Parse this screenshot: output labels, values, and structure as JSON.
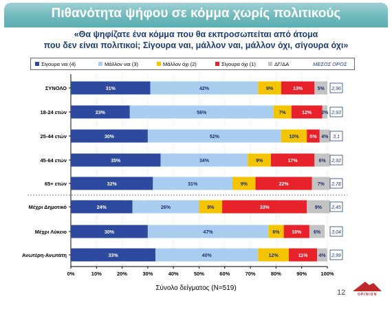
{
  "header": {
    "title": "Πιθανότητα ψήφου σε κόμμα χωρίς πολιτικούς",
    "question_line1": "«Θα ψηφίζατε ένα κόμμα που θα εκπροσωπείται από άτομα",
    "question_line2": "που δεν είναι πολιτικοί; Σίγουρα ναι, μάλλον ναι, μάλλον όχι, σίγουρα όχι»"
  },
  "legend": {
    "items": [
      {
        "label": "Σίγουρα ναι (4)",
        "color": "#2e4a9e"
      },
      {
        "label": "Μάλλον ναι (3)",
        "color": "#a9cdee"
      },
      {
        "label": "Μάλλον όχι (2)",
        "color": "#f5c400"
      },
      {
        "label": "Σίγουρα όχι (1)",
        "color": "#e8222a"
      },
      {
        "label": "ΔΓ/ΔΑ",
        "color": "#c3c3c3"
      }
    ],
    "mean_label": "ΜΕΣΟΣ ΟΡΟΣ"
  },
  "chart_data": {
    "type": "bar",
    "orientation": "horizontal",
    "stacked": true,
    "categories": [
      "ΣΥΝΟΛΟ",
      "18-24 ετών",
      "25-44 ετών",
      "45-64 ετών",
      "65+ ετών",
      "Μέχρι Δημοτικό",
      "Μέχρι Λύκειο",
      "Ανωτέρη-Ανωτάτη"
    ],
    "series": [
      {
        "name": "Σίγουρα ναι (4)",
        "values": [
          31,
          23,
          30,
          35,
          32,
          24,
          30,
          33
        ]
      },
      {
        "name": "Μάλλον ναι (3)",
        "values": [
          42,
          56,
          52,
          34,
          31,
          26,
          47,
          40
        ]
      },
      {
        "name": "Μάλλον όχι (2)",
        "values": [
          9,
          7,
          10,
          9,
          9,
          9,
          6,
          12
        ]
      },
      {
        "name": "Σίγουρα όχι (1)",
        "values": [
          13,
          12,
          5,
          17,
          22,
          33,
          10,
          11
        ]
      },
      {
        "name": "ΔΓ/ΔΑ",
        "values": [
          5,
          2,
          4,
          6,
          7,
          9,
          6,
          4
        ]
      }
    ],
    "mean_label": "ΜΕΣΟΣ ΟΡΟΣ",
    "means": [
      "2,96",
      "2,93",
      "3,1",
      "2,92",
      "2,78",
      "2,45",
      "3,04",
      "2,99"
    ],
    "xlim": [
      0,
      100
    ],
    "xticks": [
      "0%",
      "10%",
      "20%",
      "30%",
      "40%",
      "50%",
      "60%",
      "70%",
      "80%",
      "90%",
      "100%"
    ],
    "grid": true,
    "group_separator_after_index": 4,
    "legend_position": "top"
  },
  "footer": {
    "sample_note": "Σύνολο δείγματος (N=519)",
    "page_number": "12",
    "logo_text": "OPINION"
  }
}
